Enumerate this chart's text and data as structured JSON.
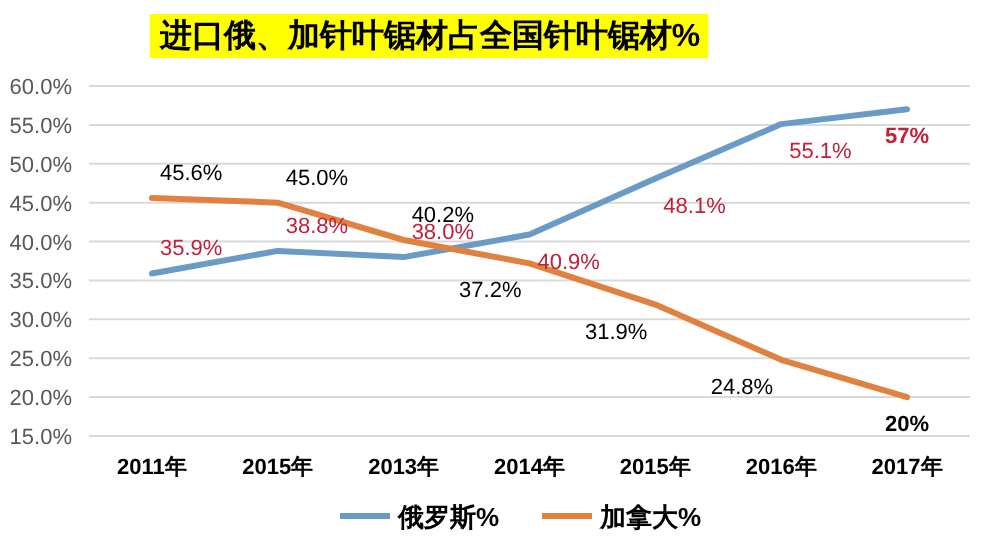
{
  "chart_data": {
    "type": "line",
    "title": "进口俄、加针叶锯材占全国针叶锯材%",
    "categories": [
      "2011年",
      "2015年",
      "2013年",
      "2014年",
      "2015年",
      "2016年",
      "2017年"
    ],
    "series": [
      {
        "name": "俄罗斯%",
        "color": "#6a9bc6",
        "values": [
          35.9,
          38.8,
          38.0,
          40.9,
          48.1,
          55.1,
          57
        ],
        "value_labels": [
          "35.9%",
          "38.8%",
          "38.0%",
          "40.9%",
          "48.1%",
          "55.1%",
          "57%"
        ]
      },
      {
        "name": "加拿大%",
        "color": "#e0813f",
        "values": [
          45.6,
          45.0,
          40.2,
          37.2,
          31.9,
          24.8,
          20
        ],
        "value_labels": [
          "45.6%",
          "45.0%",
          "40.2%",
          "37.2%",
          "31.9%",
          "24.8%",
          "20%"
        ]
      }
    ],
    "ylim": [
      15,
      60
    ],
    "yticks": [
      {
        "value": 15,
        "label": "15.0%"
      },
      {
        "value": 20,
        "label": "20.0%"
      },
      {
        "value": 25,
        "label": "25.0%"
      },
      {
        "value": 30,
        "label": "30.0%"
      },
      {
        "value": 35,
        "label": "35.0%"
      },
      {
        "value": 40,
        "label": "40.0%"
      },
      {
        "value": 45,
        "label": "45.0%"
      },
      {
        "value": 50,
        "label": "50.0%"
      },
      {
        "value": 55,
        "label": "55.0%"
      },
      {
        "value": 60,
        "label": "60.0%"
      }
    ],
    "grid": "y",
    "legend": "bottom",
    "marker": "none",
    "line_style": "solid"
  }
}
